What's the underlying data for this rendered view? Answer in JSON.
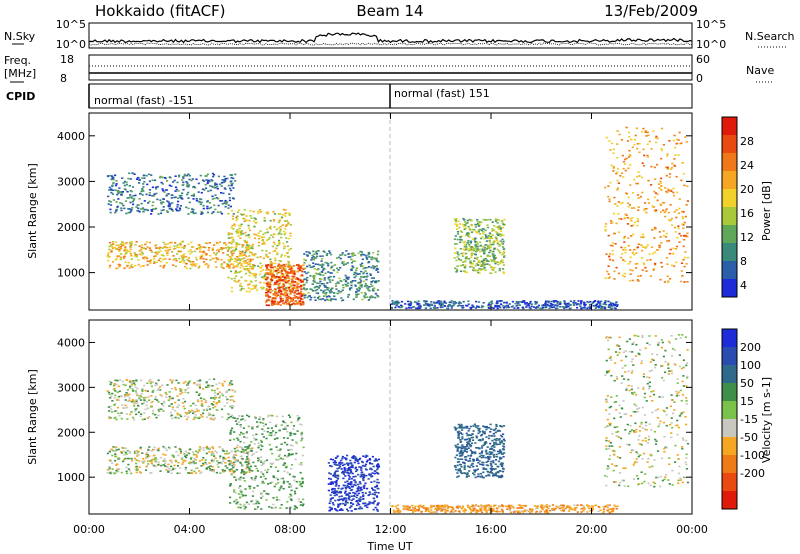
{
  "header": {
    "station": "Hokkaido (fitACF)",
    "beam": "Beam 14",
    "date": "13/Feb/2009"
  },
  "strip": {
    "nsky_label": "N.Sky",
    "nsearch_label": "N.Search",
    "freq_label_1": "Freq.",
    "freq_label_2": "[MHz]",
    "nave_label": "Nave",
    "cpid_label": "CPID",
    "nsky_ticks": [
      "10^5",
      "10^0"
    ],
    "nsearch_ticks": [
      "10^5",
      "10^0"
    ],
    "freq_ticks": [
      "18",
      "8"
    ],
    "nave_ticks": [
      "60",
      "0"
    ],
    "cpid_segments": [
      {
        "text": "normal (fast) -151",
        "start_hour": 0
      },
      {
        "text": "normal (fast) 151",
        "start_hour": 12
      }
    ]
  },
  "chart_data": [
    {
      "type": "heatmap",
      "title": "Power",
      "xlabel": "Time UT",
      "ylabel": "Slant Range [km]",
      "xlim": [
        "00:00",
        "24:00"
      ],
      "ylim": [
        180,
        4500
      ],
      "x_ticks": [
        "00:00",
        "04:00",
        "08:00",
        "12:00",
        "16:00",
        "20:00",
        "00:00"
      ],
      "y_ticks": [
        1000,
        2000,
        3000,
        4000
      ],
      "colorbar": {
        "label": "Power [dB]",
        "ticks": [
          4,
          8,
          12,
          16,
          20,
          24,
          28
        ],
        "colors": [
          "#1d2bd8",
          "#2a5ea8",
          "#3a8a7c",
          "#5fa85a",
          "#a9c93a",
          "#f0d22a",
          "#f5a623",
          "#f07818",
          "#ea4a10",
          "#e01a0a"
        ]
      },
      "regions": [
        {
          "t": [
            0.7,
            5.8
          ],
          "r": [
            2300,
            3200
          ],
          "level": 8
        },
        {
          "t": [
            0.7,
            6.5
          ],
          "r": [
            1100,
            1700
          ],
          "level": 20
        },
        {
          "t": [
            5.5,
            8.0
          ],
          "r": [
            600,
            2400
          ],
          "level": 18
        },
        {
          "t": [
            7.0,
            8.5
          ],
          "r": [
            300,
            1200
          ],
          "level": 26
        },
        {
          "t": [
            8.5,
            11.5
          ],
          "r": [
            400,
            1500
          ],
          "level": 10
        },
        {
          "t": [
            14.5,
            16.5
          ],
          "r": [
            1000,
            2200
          ],
          "level": 14
        },
        {
          "t": [
            12.0,
            21.0
          ],
          "r": [
            230,
            400
          ],
          "level": 6
        },
        {
          "t": [
            20.5,
            23.8
          ],
          "r": [
            800,
            4200
          ],
          "level": 22
        }
      ]
    },
    {
      "type": "heatmap",
      "title": "Velocity",
      "xlabel": "Time UT",
      "ylabel": "Slant Range [km]",
      "xlim": [
        "00:00",
        "24:00"
      ],
      "ylim": [
        180,
        4500
      ],
      "x_ticks": [
        "00:00",
        "04:00",
        "08:00",
        "12:00",
        "16:00",
        "20:00",
        "00:00"
      ],
      "y_ticks": [
        1000,
        2000,
        3000,
        4000
      ],
      "colorbar": {
        "label": "Velocity [m s-1]",
        "ticks": [
          200,
          100,
          50,
          15,
          -15,
          -50,
          -100,
          -200
        ],
        "colors": [
          "#1d2bd8",
          "#2a4cb0",
          "#2f6a8a",
          "#3f8f4a",
          "#7ac24a",
          "#c8c8c0",
          "#f5a623",
          "#f07a18",
          "#ea4a10",
          "#e01a0a"
        ]
      },
      "regions": [
        {
          "t": [
            0.7,
            5.8
          ],
          "r": [
            2300,
            3200
          ],
          "v": 0
        },
        {
          "t": [
            0.7,
            6.5
          ],
          "r": [
            1100,
            1700
          ],
          "v": 0
        },
        {
          "t": [
            5.5,
            8.5
          ],
          "r": [
            300,
            2400
          ],
          "v": 20
        },
        {
          "t": [
            9.5,
            11.5
          ],
          "r": [
            250,
            1500
          ],
          "v": 150
        },
        {
          "t": [
            14.5,
            16.5
          ],
          "r": [
            1000,
            2200
          ],
          "v": 80
        },
        {
          "t": [
            12.0,
            21.0
          ],
          "r": [
            230,
            400
          ],
          "v": -40
        },
        {
          "t": [
            20.5,
            23.8
          ],
          "r": [
            800,
            4200
          ],
          "v": 0
        }
      ]
    }
  ]
}
